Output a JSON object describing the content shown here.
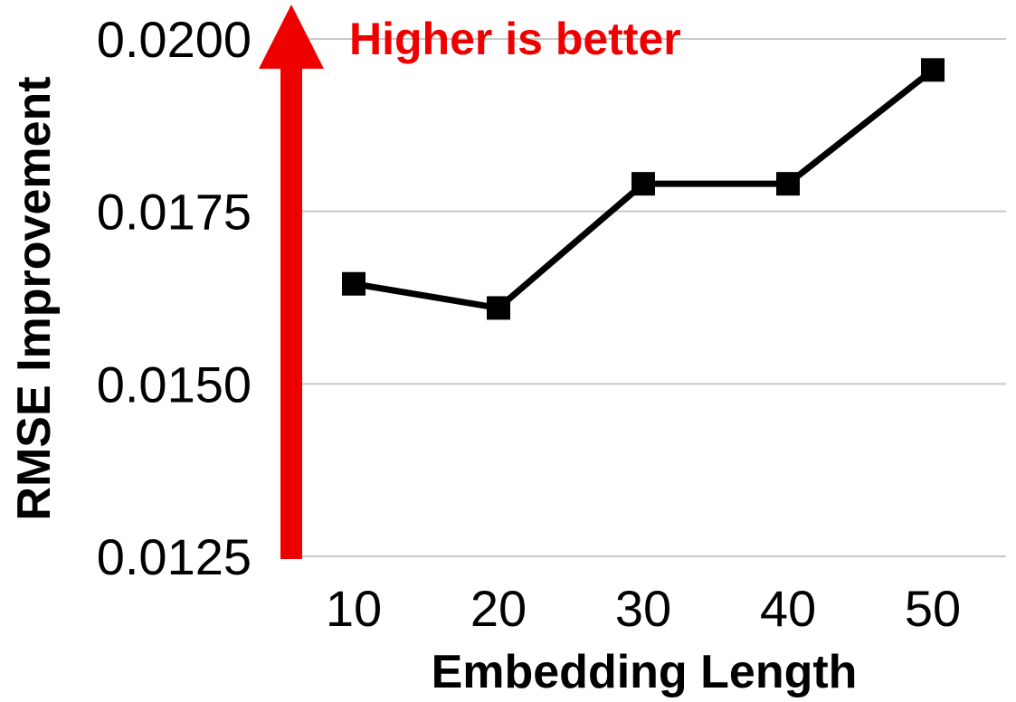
{
  "chart_data": {
    "type": "line",
    "title": "",
    "xlabel": "Embedding Length",
    "ylabel": "RMSE Improvement",
    "categories": [
      "10",
      "20",
      "30",
      "40",
      "50"
    ],
    "series": [
      {
        "values": [
          0.01645,
          0.0161,
          0.0179,
          0.0179,
          0.01955
        ]
      }
    ],
    "ylim": [
      0.0125,
      0.02
    ],
    "yticks": [
      "0.0125",
      "0.0150",
      "0.0175",
      "0.0200"
    ],
    "grid": "horizontal",
    "legend": "none",
    "annotation": {
      "text": "Higher is better",
      "color": "#ee0000",
      "arrow": "up"
    },
    "colors": {
      "series": "#000000",
      "grid": "#c8c8c8",
      "annotation": "#ee0000"
    }
  }
}
